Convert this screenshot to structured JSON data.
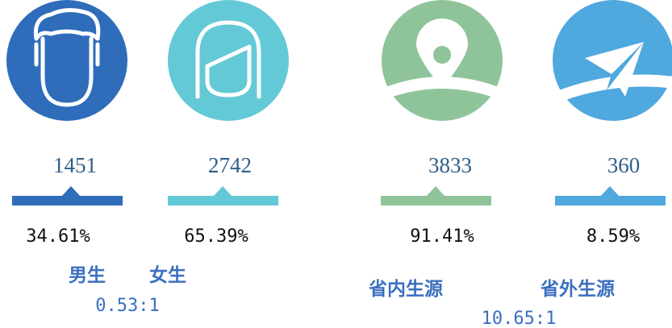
{
  "items": [
    {
      "count": 1451,
      "percent": "34.61%",
      "color": "#2f6dbb"
    },
    {
      "count": 2742,
      "percent": "65.39%",
      "color": "#63c9d6"
    },
    {
      "count": 3833,
      "percent": "91.41%",
      "color": "#8fc49a"
    },
    {
      "count": 360,
      "percent": "8.59%",
      "color": "#4fa8de"
    }
  ],
  "groups": [
    {
      "labels": [
        "男生",
        "女生"
      ],
      "ratio": "0.53:1"
    },
    {
      "labels": [
        "省内生源",
        "省外生源"
      ],
      "ratio": "10.65:1"
    }
  ]
}
